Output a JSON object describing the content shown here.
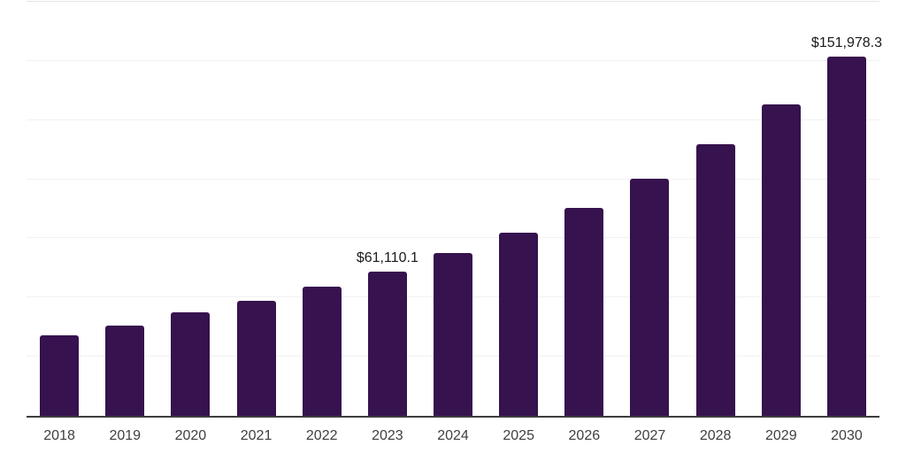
{
  "chart_data": {
    "type": "bar",
    "title": "",
    "xlabel": "",
    "ylabel": "",
    "categories": [
      "2018",
      "2019",
      "2020",
      "2021",
      "2022",
      "2023",
      "2024",
      "2025",
      "2026",
      "2027",
      "2028",
      "2029",
      "2030"
    ],
    "values": [
      33900,
      38250,
      43600,
      48500,
      54600,
      61110.1,
      68800,
      77500,
      88000,
      100300,
      114700,
      131700,
      151978.3
    ],
    "data_labels": [
      {
        "index": 5,
        "text": "$61,110.1"
      },
      {
        "index": 12,
        "text": "$151,978.3"
      }
    ],
    "ylim": [
      0,
      175000
    ],
    "gridline_step": 25000,
    "grid": "horizontal",
    "legend": "none",
    "colors": {
      "bar": "#36124E",
      "gridline": "#f1f1f1",
      "top_gridline": "#e4e4e4",
      "axis_line": "#3d3d3d",
      "data_label": "#1a1a1a",
      "tick_label": "#3f3f3f",
      "background": "#ffffff"
    }
  }
}
